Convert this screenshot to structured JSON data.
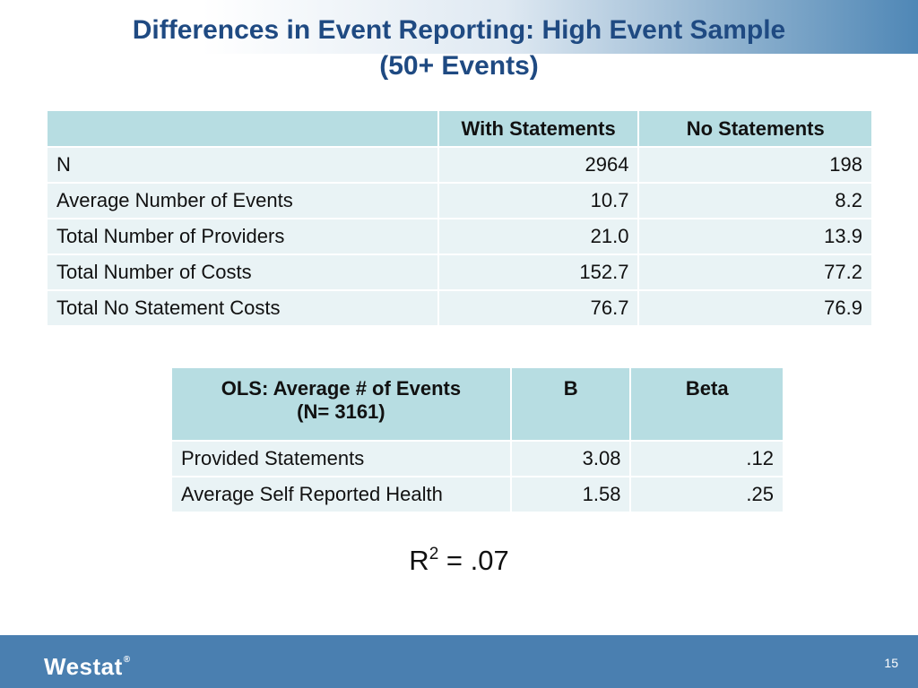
{
  "title": {
    "line1": "Differences in Event Reporting: High Event Sample",
    "line2": "(50+ Events)"
  },
  "table1": {
    "headers": [
      "",
      "With Statements",
      "No Statements"
    ],
    "rows": [
      [
        "N",
        "2964",
        "198"
      ],
      [
        "Average Number of Events",
        "10.7",
        "8.2"
      ],
      [
        "Total Number of Providers",
        "21.0",
        "13.9"
      ],
      [
        "Total Number of Costs",
        "152.7",
        "77.2"
      ],
      [
        "Total No Statement Costs",
        "76.7",
        "76.9"
      ]
    ]
  },
  "table2": {
    "header_line1": "OLS: Average # of Events",
    "header_line2": "(N= 3161)",
    "headers": [
      "B",
      "Beta"
    ],
    "rows": [
      [
        "Provided Statements",
        "3.08",
        ".12"
      ],
      [
        "Average Self Reported Health",
        "1.58",
        ".25"
      ]
    ]
  },
  "rsquared": {
    "label": "R",
    "sup": "2",
    "value": " = .07"
  },
  "footer": {
    "logo": "Westat",
    "logo_mark": "®",
    "page_number": "15"
  },
  "colors": {
    "title": "#1f4a82",
    "header_fill": "#b7dde2",
    "row_fill": "#e9f3f5",
    "footer_bar": "#4a7fb0"
  }
}
